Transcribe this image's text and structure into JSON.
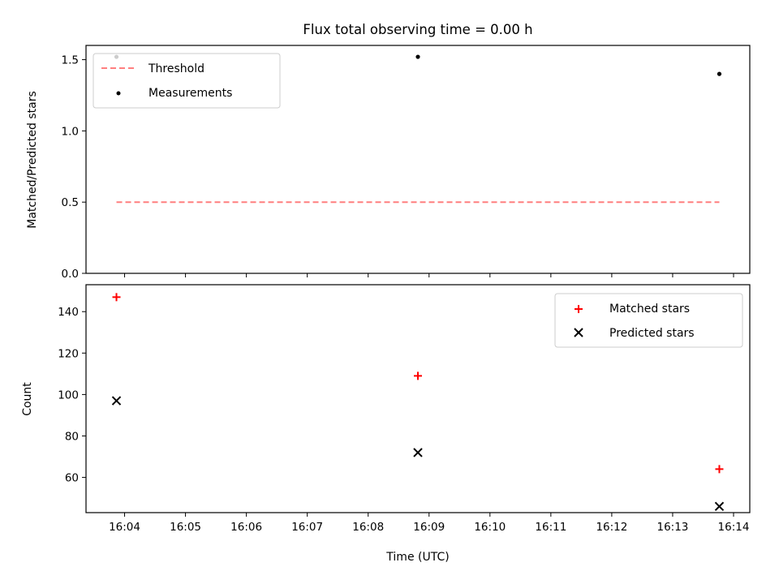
{
  "chart_data": {
    "type": "scatter",
    "title": "Flux total observing time = 0.00 h",
    "xlabel": "Time (UTC)",
    "x_ticks": [
      "16:04",
      "16:05",
      "16:06",
      "16:07",
      "16:08",
      "16:09",
      "16:10",
      "16:11",
      "16:12",
      "16:13",
      "16:14"
    ],
    "x": [
      "16:03:52",
      "16:08:49",
      "16:13:46"
    ],
    "xlim": [
      "16:03:22",
      "16:14:16"
    ],
    "panels": [
      {
        "ylabel": "Matched/Predicted stars",
        "ylim": [
          0,
          1.6
        ],
        "y_ticks": [
          "0.0",
          "0.5",
          "1.0",
          "1.5"
        ],
        "legend_position": "top-left",
        "series": [
          {
            "name": "Threshold",
            "kind": "line",
            "style": "dashed",
            "color": "#ff7f7f",
            "x": [
              "16:03:52",
              "16:13:46"
            ],
            "values": [
              0.5,
              0.5
            ]
          },
          {
            "name": "Measurements",
            "kind": "scatter",
            "marker": "dot",
            "color": "#000000",
            "values": [
              1.52,
              1.52,
              1.4
            ]
          }
        ]
      },
      {
        "ylabel": "Count",
        "ylim": [
          43,
          153
        ],
        "y_ticks": [
          "60",
          "80",
          "100",
          "120",
          "140"
        ],
        "legend_position": "top-right",
        "series": [
          {
            "name": "Matched stars",
            "kind": "scatter",
            "marker": "plus",
            "color": "#ff0000",
            "values": [
              147,
              109,
              64
            ]
          },
          {
            "name": "Predicted stars",
            "kind": "scatter",
            "marker": "x",
            "color": "#000000",
            "values": [
              97,
              72,
              46
            ]
          }
        ]
      }
    ]
  }
}
